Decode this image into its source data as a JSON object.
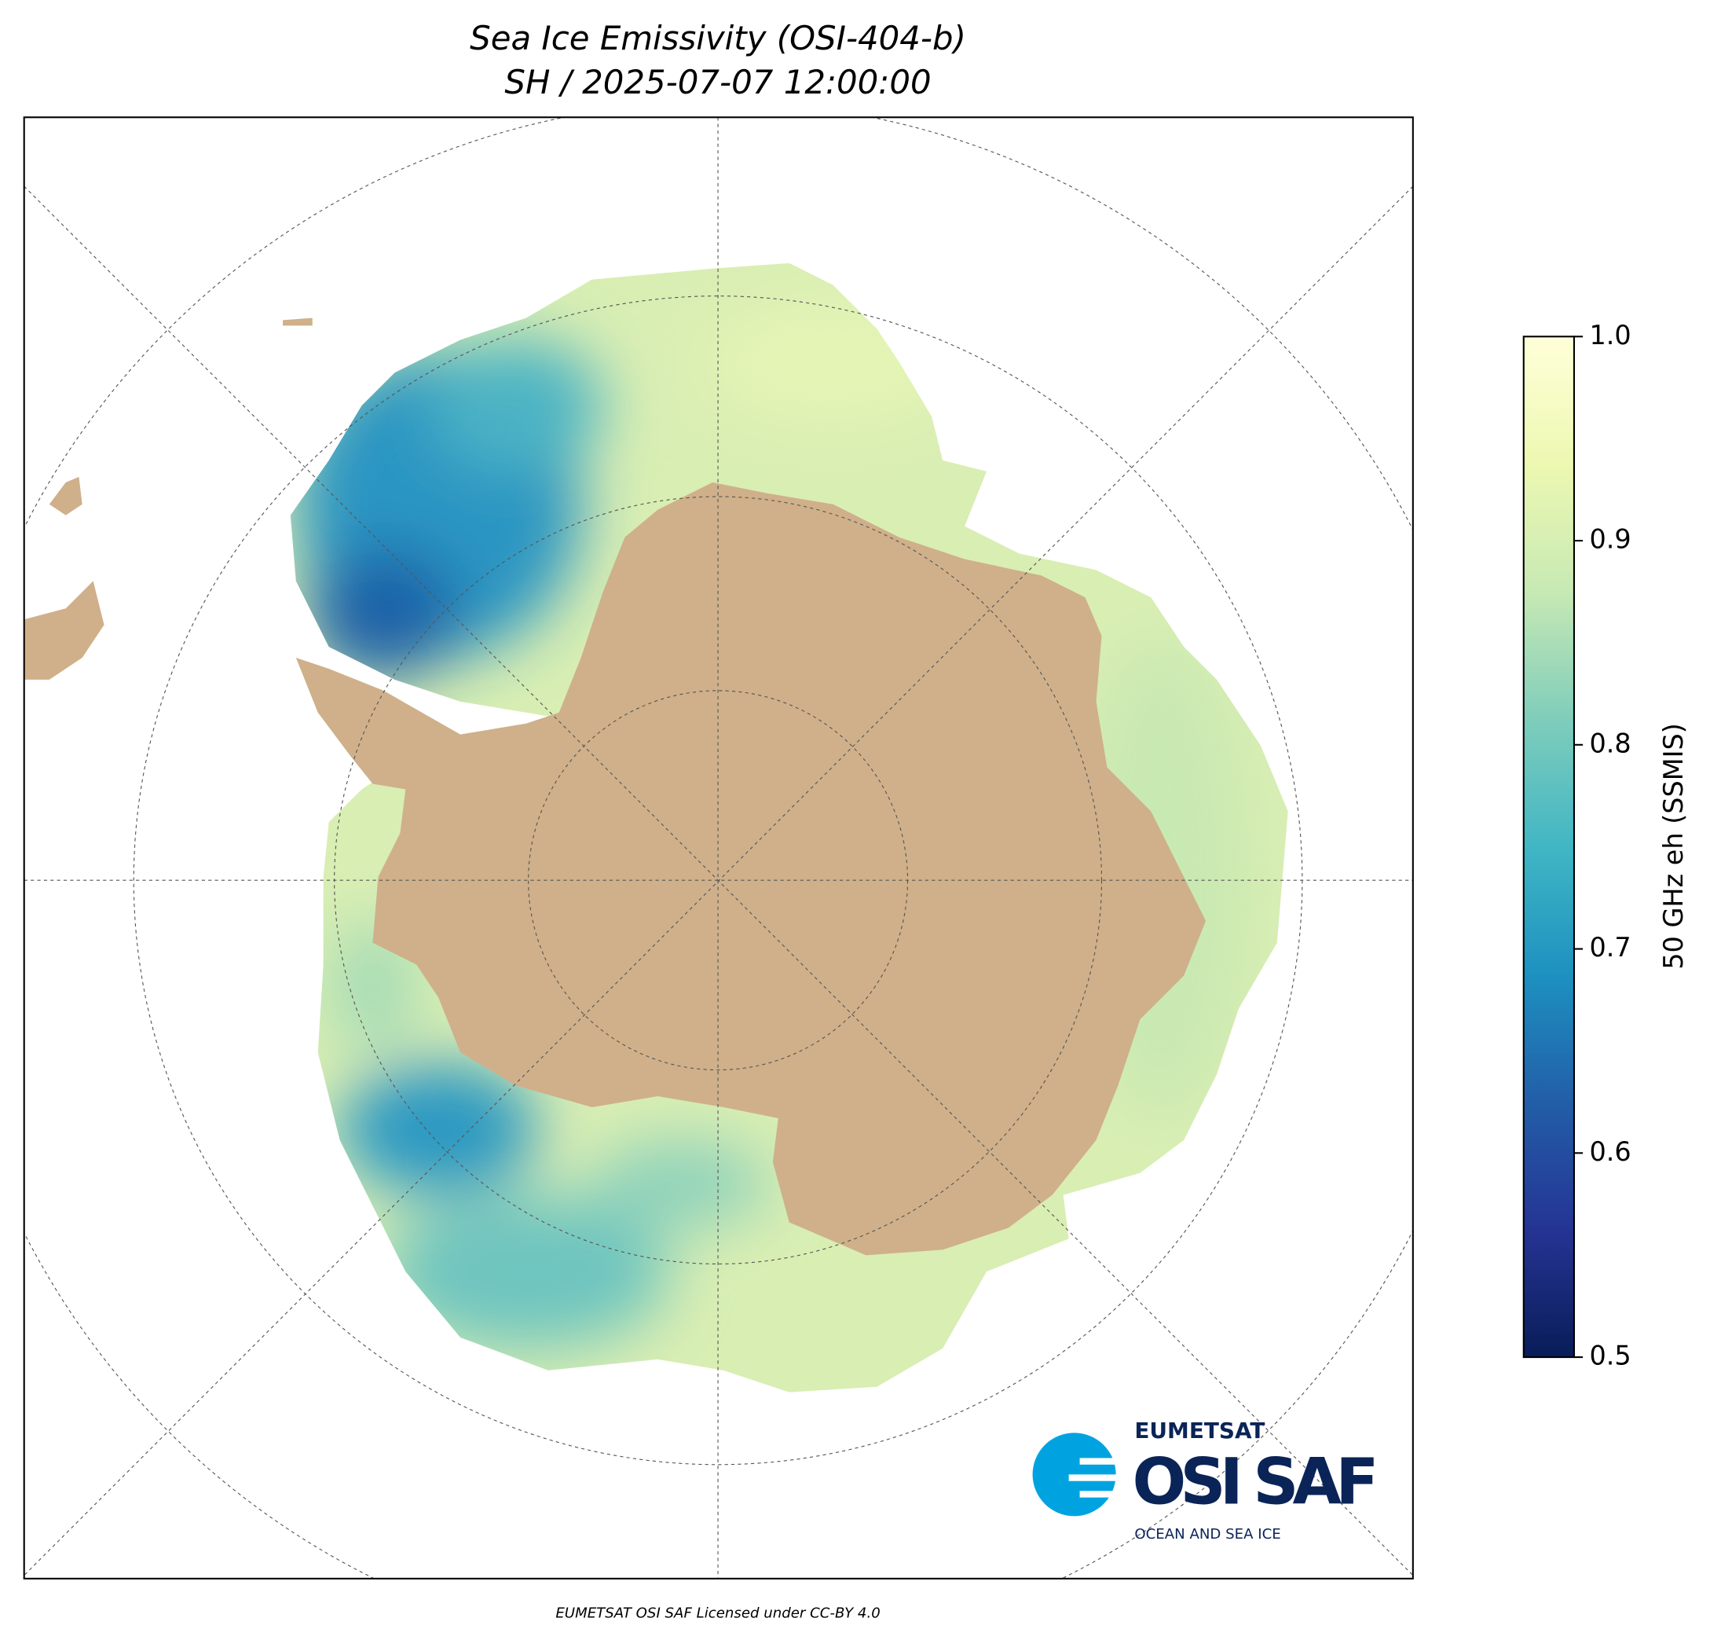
{
  "title": "Sea Ice Emissivity (OSI-404-b)",
  "subtitle": "SH / 2025-07-07 12:00:00",
  "colorbar": {
    "label": "50 GHz eh (SSMIS)",
    "lim": [
      0.5,
      1.0
    ],
    "ticks": [
      0.5,
      0.6,
      0.7,
      0.8,
      0.9,
      {
        "value": 1,
        "label": "1.0"
      }
    ],
    "colors": [
      "#081d58",
      "#253494",
      "#225ea8",
      "#1d91c0",
      "#41b6c4",
      "#7fcdbb",
      "#c7e9b4",
      "#edf8b1",
      "#ffffd9"
    ]
  },
  "logo": {
    "org": "EUMETSAT",
    "name": "OSI SAF",
    "tagline": "OCEAN AND SEA ICE"
  },
  "footer": "EUMETSAT OSI SAF Licensed under CC-BY 4.0"
}
